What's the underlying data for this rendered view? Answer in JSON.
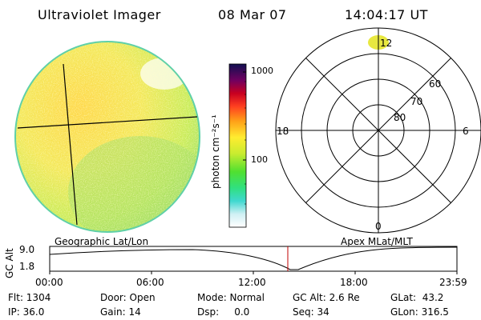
{
  "header": {
    "title": "Ultraviolet Imager",
    "date": "08 Mar 07",
    "time": "14:04:17 UT"
  },
  "colorbar": {
    "unit_label": "photon cm⁻²s⁻¹",
    "tick_1000": "1000",
    "tick_100": "100"
  },
  "polar_plot": {
    "lat_labels": [
      "80",
      "70",
      "60"
    ],
    "mlt_labels": {
      "top": "12",
      "left": "18",
      "right": "6",
      "bottom": "0"
    }
  },
  "orbit": {
    "left_title": "Geographic Lat/Lon",
    "right_title": "Apex MLat/MLT",
    "y_axis_label": "GC Alt",
    "y_ticks": [
      "9.0",
      "1.8"
    ],
    "x_ticks": [
      "00:00",
      "06:00",
      "12:00",
      "18:00",
      "23:59"
    ],
    "marker_color": "#c00000"
  },
  "footer": {
    "flt": "Flt: 1304",
    "door": "Door: Open",
    "mode": "Mode: Normal",
    "gc_alt": "GC Alt: 2.6 Re",
    "glat": "GLat:  43.2",
    "ip": "IP: 36.0",
    "gain": "Gain: 14",
    "dsp": "Dsp:     0.0",
    "seq": "Seq: 34",
    "glon": "GLon: 316.5"
  }
}
